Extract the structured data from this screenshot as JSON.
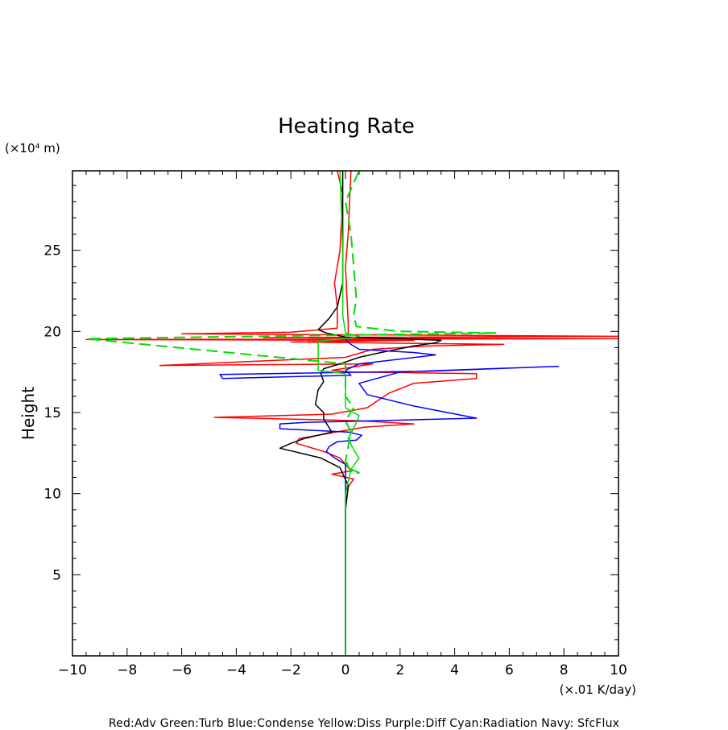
{
  "chart_data": {
    "type": "line",
    "title": "Heating Rate",
    "ylabel": "Height",
    "y_unit": "(×10⁴ m)",
    "x_unit": "(×.01 K/day)",
    "xlim": [
      -10,
      10
    ],
    "ylim": [
      0,
      29.9
    ],
    "xticks": [
      -10,
      -8,
      -6,
      -4,
      -2,
      0,
      2,
      4,
      6,
      8,
      10
    ],
    "yticks": [
      5,
      10,
      15,
      20,
      25
    ],
    "legend_text": "Red:Adv  Green:Turb  Blue:Condense  Yellow:Diss  Purple:Diff  Cyan:Radiation  Navy: SfcFlux",
    "series": [
      {
        "color": "#ff0000",
        "dash": false,
        "points": [
          [
            0,
            0
          ],
          [
            0,
            5
          ],
          [
            0,
            9
          ],
          [
            0.1,
            10.4
          ],
          [
            0.3,
            10.9
          ],
          [
            -0.5,
            11.2
          ],
          [
            0.2,
            11.4
          ],
          [
            -0.2,
            12.2
          ],
          [
            -0.8,
            12.6
          ],
          [
            -1.8,
            13.1
          ],
          [
            -1.7,
            13.4
          ],
          [
            -1,
            13.6
          ],
          [
            0,
            13.9
          ],
          [
            0.7,
            14.1
          ],
          [
            2.5,
            14.3
          ],
          [
            0.5,
            14.5
          ],
          [
            -4.8,
            14.7
          ],
          [
            -0.5,
            14.9
          ],
          [
            0.8,
            15.3
          ],
          [
            1.6,
            16.2
          ],
          [
            2.5,
            16.8
          ],
          [
            4.8,
            17.1
          ],
          [
            4.8,
            17.4
          ],
          [
            0.2,
            17.5
          ],
          [
            -0.5,
            17.6
          ],
          [
            1,
            18
          ],
          [
            -6.8,
            17.9
          ],
          [
            0,
            18.4
          ],
          [
            1,
            18.9
          ],
          [
            3,
            19.1
          ],
          [
            5.8,
            19.2
          ],
          [
            -2,
            19.35
          ],
          [
            2.5,
            19.45
          ],
          [
            -9.5,
            19.5
          ],
          [
            10,
            19.55
          ],
          [
            -3,
            19.62
          ],
          [
            10,
            19.7
          ],
          [
            -6,
            19.85
          ],
          [
            -2,
            19.95
          ],
          [
            -0.3,
            20.2
          ],
          [
            -0.3,
            21.5
          ],
          [
            -0.4,
            23
          ],
          [
            -0.2,
            25
          ],
          [
            -0.1,
            28.5
          ],
          [
            -0.3,
            29.9
          ]
        ]
      },
      {
        "color": "#ff0000",
        "dash": false,
        "points": [
          [
            0.1,
            19.8
          ],
          [
            0.1,
            20.5
          ],
          [
            0,
            24
          ],
          [
            0.1,
            26
          ],
          [
            0.2,
            29.9
          ]
        ]
      },
      {
        "color": "#000000",
        "dash": false,
        "points": [
          [
            0,
            0
          ],
          [
            0,
            9
          ],
          [
            0.1,
            10.5
          ],
          [
            -0.2,
            11.6
          ],
          [
            -0.9,
            12.2
          ],
          [
            -1.9,
            12.6
          ],
          [
            -2.4,
            12.8
          ],
          [
            -2,
            13.1
          ],
          [
            -1.5,
            13.4
          ],
          [
            -1,
            13.6
          ],
          [
            -0.5,
            13.8
          ],
          [
            -0.8,
            14.6
          ],
          [
            -0.8,
            15
          ],
          [
            -1.1,
            15.5
          ],
          [
            -1,
            16.4
          ],
          [
            -0.8,
            16.9
          ],
          [
            -0.9,
            17.4
          ],
          [
            -0.8,
            17.7
          ],
          [
            -0.2,
            18
          ],
          [
            0.5,
            18.4
          ],
          [
            1.3,
            18.7
          ],
          [
            2.5,
            19.1
          ],
          [
            3.3,
            19.3
          ],
          [
            3.5,
            19.45
          ],
          [
            2,
            19.55
          ],
          [
            0,
            19.65
          ],
          [
            -0.7,
            19.9
          ],
          [
            -1,
            20.1
          ],
          [
            -0.6,
            20.8
          ],
          [
            -0.3,
            21.5
          ],
          [
            -0.1,
            23
          ],
          [
            -0.1,
            26
          ],
          [
            -0.1,
            28.8
          ],
          [
            -0.1,
            29.9
          ]
        ]
      },
      {
        "color": "#0000ff",
        "dash": false,
        "points": [
          [
            0,
            0
          ],
          [
            0,
            9
          ],
          [
            0,
            11.8
          ],
          [
            -0.4,
            12.2
          ],
          [
            -0.7,
            12.6
          ],
          [
            -0.6,
            12.9
          ],
          [
            -0.3,
            13.2
          ],
          [
            0.4,
            13.3
          ],
          [
            0.6,
            13.6
          ],
          [
            0.1,
            13.8
          ],
          [
            -2.4,
            14
          ],
          [
            -2.4,
            14.3
          ],
          [
            -1.4,
            14.4
          ],
          [
            1.2,
            14.5
          ],
          [
            4.8,
            14.65
          ],
          [
            2.5,
            15.4
          ],
          [
            0.8,
            16.1
          ],
          [
            0.5,
            16.8
          ],
          [
            2,
            17.5
          ],
          [
            7.8,
            17.85
          ],
          [
            3,
            17.55
          ],
          [
            -4.6,
            17.35
          ],
          [
            -4.5,
            17.1
          ],
          [
            0.2,
            17.3
          ],
          [
            0,
            17.6
          ],
          [
            0.5,
            18
          ],
          [
            3.3,
            18.55
          ],
          [
            2.5,
            18.7
          ],
          [
            0.5,
            18.9
          ],
          [
            0.2,
            19.2
          ],
          [
            0,
            19.5
          ]
        ]
      },
      {
        "color": "#00dd00",
        "dash": false,
        "points": [
          [
            0,
            0
          ],
          [
            0,
            10
          ],
          [
            0.2,
            11.5
          ],
          [
            0.5,
            12.2
          ],
          [
            0.3,
            12.7
          ],
          [
            0.1,
            13.4
          ],
          [
            0.3,
            14
          ],
          [
            0.5,
            14.8
          ],
          [
            0,
            15.3
          ],
          [
            0,
            17.4
          ],
          [
            -1,
            17.6
          ],
          [
            -1,
            19
          ],
          [
            -1,
            19.4
          ],
          [
            0.2,
            19.6
          ],
          [
            0.5,
            19.7
          ],
          [
            0,
            19.9
          ],
          [
            -0.1,
            21
          ],
          [
            -0.1,
            25
          ],
          [
            -0.2,
            29.9
          ]
        ]
      },
      {
        "color": "#00dd00",
        "dash": true,
        "points": [
          [
            0,
            11.9
          ],
          [
            0.3,
            11.2
          ],
          [
            0.5,
            11.3
          ],
          [
            0.2,
            11.5
          ],
          [
            0,
            12
          ],
          [
            0.2,
            13.8
          ],
          [
            0,
            14.5
          ],
          [
            0.3,
            15.3
          ],
          [
            0,
            16
          ],
          [
            0,
            18
          ],
          [
            -9.5,
            19.55
          ],
          [
            5.5,
            19.9
          ],
          [
            2,
            20
          ],
          [
            0.4,
            20.3
          ],
          [
            0.3,
            21
          ],
          [
            0.4,
            22
          ],
          [
            0.3,
            24
          ],
          [
            0.2,
            26
          ],
          [
            0,
            28
          ],
          [
            0.5,
            29.9
          ]
        ]
      }
    ]
  }
}
